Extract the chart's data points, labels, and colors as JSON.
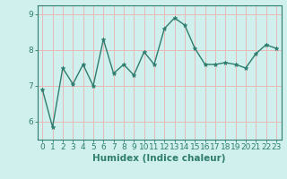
{
  "x": [
    0,
    1,
    2,
    3,
    4,
    5,
    6,
    7,
    8,
    9,
    10,
    11,
    12,
    13,
    14,
    15,
    16,
    17,
    18,
    19,
    20,
    21,
    22,
    23
  ],
  "y": [
    6.9,
    5.85,
    7.5,
    7.05,
    7.6,
    7.0,
    8.3,
    7.35,
    7.6,
    7.3,
    7.95,
    7.6,
    8.6,
    8.9,
    8.7,
    8.05,
    7.6,
    7.6,
    7.65,
    7.6,
    7.5,
    7.9,
    8.15,
    8.05
  ],
  "line_color": "#2e7d6e",
  "marker": "*",
  "marker_size": 3.5,
  "background_color": "#cff0ec",
  "grid_color": "#e8b8b8",
  "axis_color": "#2e7d6e",
  "xlabel": "Humidex (Indice chaleur)",
  "xlim": [
    -0.5,
    23.5
  ],
  "ylim": [
    5.5,
    9.25
  ],
  "yticks": [
    6,
    7,
    8,
    9
  ],
  "xticks": [
    0,
    1,
    2,
    3,
    4,
    5,
    6,
    7,
    8,
    9,
    10,
    11,
    12,
    13,
    14,
    15,
    16,
    17,
    18,
    19,
    20,
    21,
    22,
    23
  ],
  "xlabel_fontsize": 7.5,
  "tick_fontsize": 6.5,
  "line_width": 1.0
}
